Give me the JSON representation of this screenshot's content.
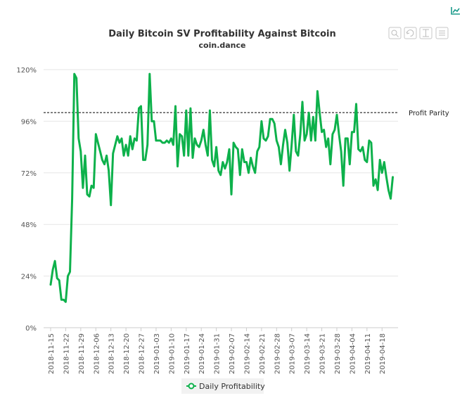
{
  "chart_data": {
    "type": "line",
    "title": "Daily Bitcoin SV Profitability Against Bitcoin",
    "subtitle": "coin.dance",
    "xlabel": "",
    "ylabel": "",
    "ylim": [
      0,
      120
    ],
    "yticks": [
      "0%",
      "24%",
      "48%",
      "72%",
      "96%",
      "120%"
    ],
    "x_tick_labels": [
      "2018-11-15",
      "2018-11-22",
      "2018-11-29",
      "2018-12-06",
      "2018-12-13",
      "2018-12-20",
      "2018-12-27",
      "2019-01-03",
      "2019-01-10",
      "2019-01-17",
      "2019-01-24",
      "2019-01-31",
      "2019-02-07",
      "2019-02-14",
      "2019-02-21",
      "2019-02-28",
      "2019-03-07",
      "2019-03-14",
      "2019-03-21",
      "2019-03-28",
      "2019-04-04",
      "2019-04-11",
      "2019-04-18"
    ],
    "x_start": "2018-11-15",
    "grid": true,
    "legend_placement": "bottom-center",
    "colors": {
      "series": "#0db14b",
      "parity": "#000000",
      "grid": "#e6e6e6"
    },
    "parity_line": {
      "value": 100,
      "label": "Profit Parity"
    },
    "series": [
      {
        "name": "Daily Profitability",
        "values": [
          20,
          27,
          31,
          23,
          22,
          13,
          13,
          12,
          24,
          26,
          60,
          118,
          116,
          88,
          82,
          65,
          80,
          62,
          61,
          66,
          65,
          90,
          86,
          82,
          78,
          76,
          80,
          73,
          57,
          81,
          85,
          89,
          86,
          88,
          80,
          85,
          80,
          89,
          83,
          88,
          87,
          102,
          103,
          78,
          78,
          85,
          118,
          96,
          96,
          87,
          87,
          87,
          86,
          86,
          87,
          86,
          88,
          85,
          103,
          75,
          90,
          89,
          80,
          101,
          80,
          102,
          79,
          88,
          85,
          84,
          87,
          92,
          85,
          80,
          101,
          78,
          75,
          84,
          73,
          71,
          77,
          74,
          77,
          83,
          62,
          86,
          84,
          83,
          71,
          83,
          77,
          77,
          72,
          79,
          75,
          72,
          82,
          84,
          96,
          88,
          87,
          89,
          97,
          97,
          95,
          87,
          84,
          76,
          85,
          92,
          86,
          73,
          85,
          99,
          82,
          80,
          90,
          105,
          87,
          90,
          100,
          87,
          98,
          87,
          110,
          100,
          91,
          92,
          84,
          88,
          76,
          90,
          92,
          99,
          90,
          82,
          66,
          88,
          88,
          76,
          91,
          91,
          104,
          83,
          82,
          84,
          78,
          77,
          87,
          86,
          66,
          69,
          64,
          78,
          72,
          77,
          70,
          64,
          60,
          70
        ]
      }
    ]
  },
  "toolbar": {
    "export_icon": "line-chart-icon",
    "buttons": [
      "zoom-icon",
      "reset-zoom-icon",
      "pan-icon",
      "menu-icon"
    ]
  }
}
